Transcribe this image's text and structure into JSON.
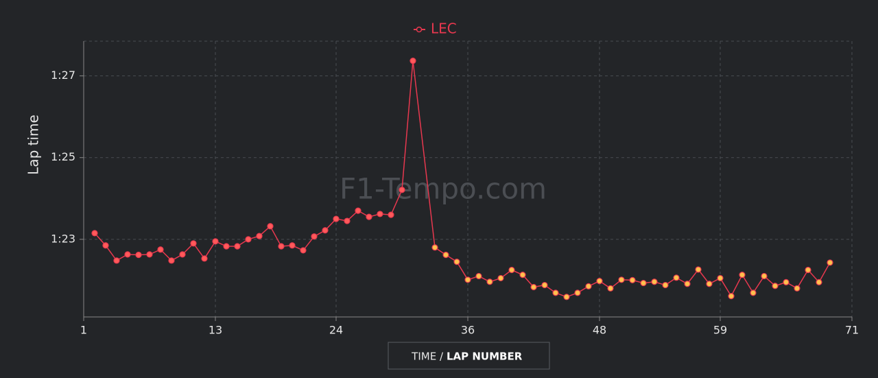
{
  "chart_data": {
    "type": "line",
    "watermark": "F1-Tempo.com",
    "y_label": "Lap time",
    "x_label_prefix": "TIME /",
    "x_label": "LAP NUMBER",
    "xlim": [
      1,
      71
    ],
    "xticks": [
      1,
      13,
      24,
      36,
      48,
      59,
      71
    ],
    "ylim": [
      81.1,
      87.85
    ],
    "yticks": [
      {
        "value": 83,
        "label": "1:23"
      },
      {
        "value": 85,
        "label": "1:25"
      },
      {
        "value": 87,
        "label": "1:27"
      }
    ],
    "grid": true,
    "series": [
      {
        "name": "LEC",
        "color": "#e8384f",
        "x": [
          2,
          3,
          4,
          5,
          6,
          7,
          8,
          9,
          10,
          11,
          12,
          13,
          14,
          15,
          16,
          17,
          18,
          19,
          20,
          21,
          22,
          23,
          24,
          25,
          26,
          27,
          28,
          29,
          30,
          31,
          33,
          34,
          35,
          36,
          37,
          38,
          39,
          40,
          41,
          42,
          43,
          44,
          45,
          46,
          47,
          48,
          49,
          50,
          51,
          52,
          53,
          54,
          55,
          56,
          57,
          58,
          59,
          60,
          61,
          62,
          63,
          64,
          65,
          66,
          67,
          68,
          69
        ],
        "values": [
          83.15,
          82.85,
          82.48,
          82.63,
          82.62,
          82.63,
          82.75,
          82.48,
          82.63,
          82.9,
          82.53,
          82.95,
          82.83,
          82.83,
          83.0,
          83.08,
          83.32,
          82.83,
          82.85,
          82.73,
          83.07,
          83.22,
          83.5,
          83.45,
          83.7,
          83.55,
          83.62,
          83.6,
          84.21,
          87.37,
          82.8,
          82.62,
          82.45,
          82.01,
          82.1,
          81.96,
          82.05,
          82.25,
          82.13,
          81.83,
          81.88,
          81.69,
          81.59,
          81.69,
          81.85,
          81.98,
          81.8,
          82.01,
          82.0,
          81.93,
          81.96,
          81.88,
          82.06,
          81.91,
          82.26,
          81.91,
          82.05,
          81.61,
          82.13,
          81.69,
          82.1,
          81.86,
          81.95,
          81.8,
          82.25,
          81.95,
          82.43
        ],
        "marker_colors": [
          "#ff5a5a",
          "#ff5a5a",
          "#ff5a5a",
          "#ff5a5a",
          "#ff5a5a",
          "#ff5a5a",
          "#ff5a5a",
          "#ff5a5a",
          "#ff5a5a",
          "#ff5a5a",
          "#ff5a5a",
          "#ff5a5a",
          "#ff5a5a",
          "#ff5a5a",
          "#ff5a5a",
          "#ff5a5a",
          "#ff5a5a",
          "#ff5a5a",
          "#ff5a5a",
          "#ff5a5a",
          "#ff5a5a",
          "#ff5a5a",
          "#ff5a5a",
          "#ff5a5a",
          "#ff5a5a",
          "#ff5a5a",
          "#ff5a5a",
          "#ff5a5a",
          "#ff5a5a",
          "#ff5a5a",
          "#ffc04d",
          "#ffc04d",
          "#ffc04d",
          "#ffc04d",
          "#ffc04d",
          "#ffc04d",
          "#ffc04d",
          "#ffc04d",
          "#ffc04d",
          "#ffc04d",
          "#ffc04d",
          "#ffc04d",
          "#ffc04d",
          "#ffc04d",
          "#ffc04d",
          "#ffc04d",
          "#ffc04d",
          "#ffc04d",
          "#ffc04d",
          "#ffc04d",
          "#ffc04d",
          "#ffc04d",
          "#ffc04d",
          "#ffc04d",
          "#ffc04d",
          "#ffc04d",
          "#ffc04d",
          "#ffc04d",
          "#ffc04d",
          "#ffc04d",
          "#ffc04d",
          "#ffc04d",
          "#ffc04d",
          "#ffc04d",
          "#ffc04d",
          "#ffc04d",
          "#ffc04d"
        ]
      }
    ]
  }
}
